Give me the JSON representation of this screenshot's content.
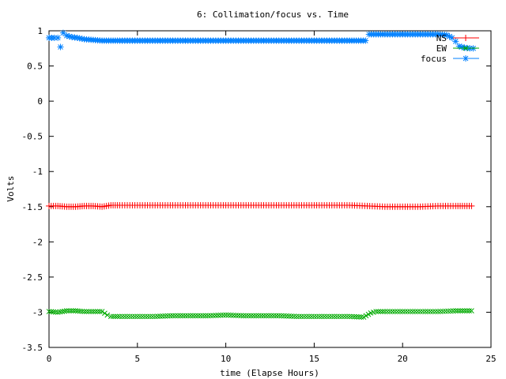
{
  "chart_data": {
    "type": "scatter",
    "title": "6: Collimation/focus vs. Time",
    "xlabel": "time (Elapse Hours)",
    "ylabel": "Volts",
    "xlim": [
      0,
      25
    ],
    "ylim": [
      -3.5,
      1
    ],
    "xticks": [
      0,
      5,
      10,
      15,
      20,
      25
    ],
    "xtick_labels": [
      "0",
      "5",
      "10",
      "15",
      "20",
      "25"
    ],
    "yticks": [
      1,
      0.5,
      0,
      -0.5,
      -1,
      -1.5,
      -2,
      -2.5,
      -3,
      -3.5
    ],
    "ytick_labels": [
      "1",
      "0.5",
      "0",
      "-0.5",
      "-1",
      "-1.5",
      "-2",
      "-2.5",
      "-3",
      "-3.5"
    ],
    "grid": false,
    "legend_position": "top-right",
    "series": [
      {
        "name": "NS",
        "color": "#ff0000",
        "marker": "plus",
        "points": [
          [
            0.0,
            -1.49
          ],
          [
            0.5,
            -1.49
          ],
          [
            1.0,
            -1.5
          ],
          [
            1.5,
            -1.5
          ],
          [
            2.0,
            -1.49
          ],
          [
            2.5,
            -1.49
          ],
          [
            3.0,
            -1.5
          ],
          [
            3.5,
            -1.48
          ],
          [
            4.0,
            -1.48
          ],
          [
            5.0,
            -1.48
          ],
          [
            6.0,
            -1.48
          ],
          [
            7.0,
            -1.48
          ],
          [
            8.0,
            -1.48
          ],
          [
            9.0,
            -1.48
          ],
          [
            10.0,
            -1.48
          ],
          [
            11.0,
            -1.48
          ],
          [
            12.0,
            -1.48
          ],
          [
            13.0,
            -1.48
          ],
          [
            14.0,
            -1.48
          ],
          [
            15.0,
            -1.48
          ],
          [
            16.0,
            -1.48
          ],
          [
            17.0,
            -1.48
          ],
          [
            18.0,
            -1.49
          ],
          [
            19.0,
            -1.5
          ],
          [
            20.0,
            -1.5
          ],
          [
            21.0,
            -1.5
          ],
          [
            22.0,
            -1.49
          ],
          [
            23.0,
            -1.49
          ],
          [
            23.9,
            -1.49
          ]
        ]
      },
      {
        "name": "EW",
        "color": "#00aa00",
        "marker": "cross",
        "points": [
          [
            0.0,
            -2.99
          ],
          [
            0.5,
            -3.0
          ],
          [
            1.0,
            -2.98
          ],
          [
            1.5,
            -2.98
          ],
          [
            2.0,
            -2.99
          ],
          [
            2.5,
            -2.99
          ],
          [
            3.0,
            -2.99
          ],
          [
            3.3,
            -3.04
          ],
          [
            3.5,
            -3.06
          ],
          [
            4.0,
            -3.06
          ],
          [
            5.0,
            -3.06
          ],
          [
            6.0,
            -3.06
          ],
          [
            7.0,
            -3.05
          ],
          [
            8.0,
            -3.05
          ],
          [
            9.0,
            -3.05
          ],
          [
            10.0,
            -3.04
          ],
          [
            11.0,
            -3.05
          ],
          [
            12.0,
            -3.05
          ],
          [
            13.0,
            -3.05
          ],
          [
            14.0,
            -3.06
          ],
          [
            15.0,
            -3.06
          ],
          [
            16.0,
            -3.06
          ],
          [
            17.0,
            -3.06
          ],
          [
            17.8,
            -3.07
          ],
          [
            18.2,
            -3.01
          ],
          [
            18.5,
            -2.99
          ],
          [
            19.0,
            -2.99
          ],
          [
            20.0,
            -2.99
          ],
          [
            21.0,
            -2.99
          ],
          [
            22.0,
            -2.99
          ],
          [
            23.0,
            -2.98
          ],
          [
            23.9,
            -2.98
          ]
        ]
      },
      {
        "name": "focus",
        "color": "#0080ff",
        "marker": "star",
        "points": [
          [
            0.0,
            0.9
          ],
          [
            0.3,
            0.9
          ],
          [
            0.5,
            0.9
          ],
          [
            0.65,
            0.77
          ],
          [
            0.8,
            0.97
          ],
          [
            1.0,
            0.93
          ],
          [
            1.3,
            0.91
          ],
          [
            1.6,
            0.9
          ],
          [
            2.0,
            0.88
          ],
          [
            2.5,
            0.87
          ],
          [
            3.0,
            0.86
          ],
          [
            3.5,
            0.86
          ],
          [
            4.0,
            0.86
          ],
          [
            5.0,
            0.86
          ],
          [
            6.0,
            0.86
          ],
          [
            7.0,
            0.86
          ],
          [
            8.0,
            0.86
          ],
          [
            9.0,
            0.86
          ],
          [
            10.0,
            0.86
          ],
          [
            11.0,
            0.86
          ],
          [
            12.0,
            0.86
          ],
          [
            13.0,
            0.86
          ],
          [
            14.0,
            0.86
          ],
          [
            15.0,
            0.86
          ],
          [
            16.0,
            0.86
          ],
          [
            17.0,
            0.86
          ],
          [
            17.9,
            0.86
          ],
          [
            18.1,
            0.95
          ],
          [
            18.5,
            0.95
          ],
          [
            19.0,
            0.95
          ],
          [
            20.0,
            0.95
          ],
          [
            21.0,
            0.95
          ],
          [
            22.0,
            0.95
          ],
          [
            22.5,
            0.94
          ],
          [
            22.8,
            0.9
          ],
          [
            23.0,
            0.85
          ],
          [
            23.2,
            0.78
          ],
          [
            23.5,
            0.76
          ],
          [
            23.8,
            0.75
          ],
          [
            24.0,
            0.75
          ]
        ]
      }
    ]
  }
}
